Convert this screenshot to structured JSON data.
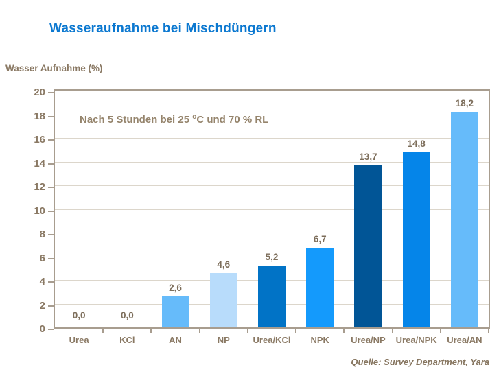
{
  "page": {
    "title": "Wasseraufnahme bei Mischdüngern"
  },
  "axis_header": "Wasser Aufnahme (%)",
  "annotation": {
    "pre": "Nach 5 Stunden bei 25 ",
    "sup": "o",
    "post": "C und 70 % RL"
  },
  "source": "Quelle: Survey Department, Yara",
  "colors": {
    "title_blue": "#0b78d0",
    "label_brown": "#8a7964",
    "grid_gray": "#dcd6cb",
    "frame_gray": "#a89d8f",
    "bar_sky_blue": "#66bbfa",
    "bar_pale_blue": "#b8dcfb",
    "bar_azure": "#0173c6",
    "bar_bright_blue": "#149afc",
    "bar_navy": "#015596",
    "bar_medium_blue": "#0585e9"
  },
  "chart_data": {
    "type": "bar",
    "title": "Wasseraufnahme bei Mischdüngern",
    "ylabel": "Wasser Aufnahme (%)",
    "xlabel": "",
    "categories": [
      "Urea",
      "KCl",
      "AN",
      "NP",
      "Urea/KCl",
      "NPK",
      "Urea/NP",
      "Urea/NPK",
      "Urea/AN"
    ],
    "values": [
      0.0,
      0.0,
      2.6,
      4.6,
      5.2,
      6.7,
      13.7,
      14.8,
      18.2
    ],
    "value_labels": [
      "0,0",
      "0,0",
      "2,6",
      "4,6",
      "5,2",
      "6,7",
      "13,7",
      "14,8",
      "18,2"
    ],
    "bar_colors": [
      null,
      null,
      "#66bbfa",
      "#b8dcfb",
      "#0173c6",
      "#149afc",
      "#015596",
      "#0585e9",
      "#66bbfa"
    ],
    "ylim": [
      0,
      20
    ],
    "ytick_step": 2,
    "grid": true,
    "legend": "none",
    "annotation": "Nach 5 Stunden bei 25 °C und 70 % RL",
    "source": "Quelle: Survey Department, Yara"
  }
}
